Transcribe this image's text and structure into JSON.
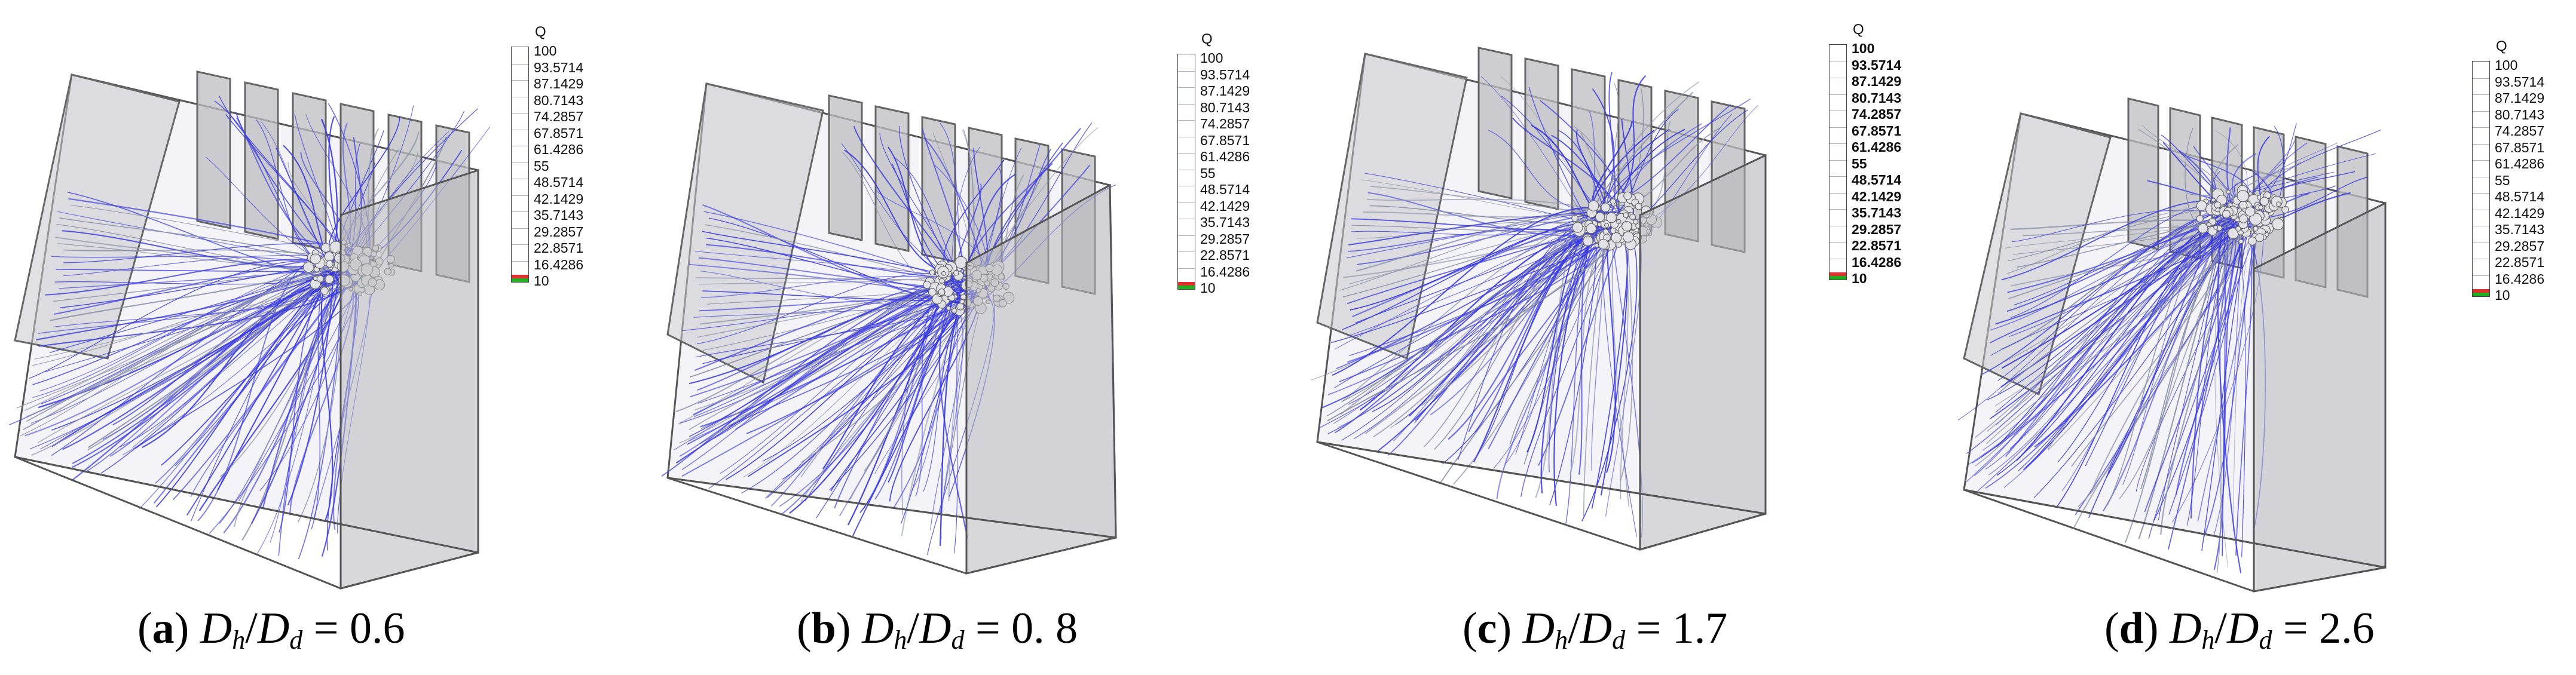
{
  "legend": {
    "title": "Q",
    "labels": [
      "100",
      "93.5714",
      "87.1429",
      "80.7143",
      "74.2857",
      "67.8571",
      "61.4286",
      "55",
      "48.5714",
      "42.1429",
      "35.7143",
      "29.2857",
      "22.8571",
      "16.4286",
      "10"
    ],
    "swatch_colors": [
      "#e03030",
      "#22b022"
    ],
    "streamline_color": "#3a3ae0"
  },
  "panels": [
    {
      "letter": "a",
      "ratio": "0.6"
    },
    {
      "letter": "b",
      "ratio": "0. 8"
    },
    {
      "letter": "c",
      "ratio": "1.7"
    },
    {
      "letter": "d",
      "ratio": "2.6"
    }
  ],
  "caption": {
    "D": "D",
    "h": "h",
    "d": "d",
    "eq": " = "
  }
}
